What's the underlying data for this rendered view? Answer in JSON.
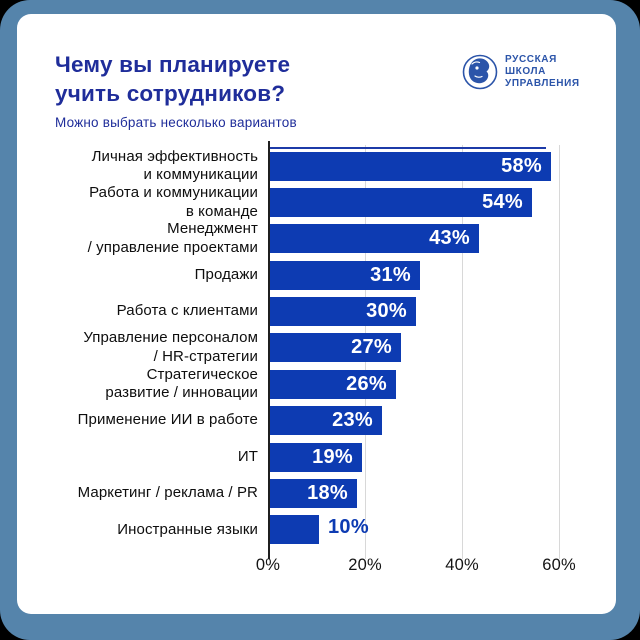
{
  "frame": {
    "outer_background": "#000000",
    "frame_color": "#5584ab",
    "card_background": "#ffffff"
  },
  "header": {
    "title": "Чему вы планируете\nучить сотрудников?",
    "subtitle": "Можно выбрать несколько вариантов",
    "title_color": "#1f2d9a"
  },
  "logo": {
    "name": "Русская школа управления",
    "text": "РУССКАЯ\nШКОЛА\nУПРАВЛЕНИЯ",
    "color": "#2b54a9"
  },
  "chart_data": {
    "type": "bar",
    "orientation": "horizontal",
    "title": "Чему вы планируете учить сотрудников?",
    "subtitle": "Можно выбрать несколько вариантов",
    "categories": [
      "Личная эффективность\nи коммуникации",
      "Работа и коммуникации\nв команде",
      "Менеджмент\n/ управление проектами",
      "Продажи",
      "Работа с клиентами",
      "Управление персоналом\n/ HR-стратегии",
      "Стратегическое\nразвитие / инновации",
      "Применение ИИ в работе",
      "ИТ",
      "Маркетинг / реклама / PR",
      "Иностранные языки"
    ],
    "values": [
      58,
      54,
      43,
      31,
      30,
      27,
      26,
      23,
      19,
      18,
      10
    ],
    "value_labels": [
      "58%",
      "54%",
      "43%",
      "31%",
      "30%",
      "27%",
      "26%",
      "23%",
      "19%",
      "18%",
      "10%"
    ],
    "value_label_inside": [
      true,
      true,
      true,
      true,
      true,
      true,
      true,
      true,
      true,
      true,
      false
    ],
    "x_ticks": [
      "0%",
      "20%",
      "40%",
      "60%"
    ],
    "x_tick_values": [
      0,
      20,
      40,
      60
    ],
    "xlim": [
      0,
      60
    ],
    "bar_color": "#0d3bb2",
    "value_label_color_inside": "#ffffff",
    "value_label_color_outside": "#0d3bb2",
    "grid": "vertical gridlines at 20%, 40%, 60%",
    "legend": "none",
    "xlabel": "",
    "ylabel": ""
  }
}
